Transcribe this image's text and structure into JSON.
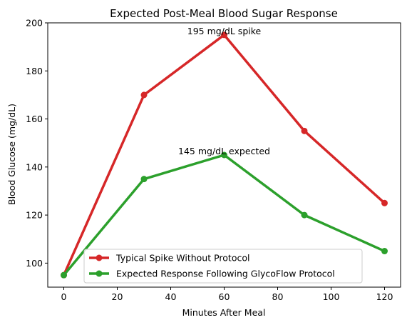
{
  "chart_data": {
    "type": "line",
    "title": "Expected Post-Meal Blood Sugar Response",
    "xlabel": "Minutes After Meal",
    "ylabel": "Blood Glucose (mg/dL)",
    "x": [
      0,
      30,
      60,
      90,
      120
    ],
    "xlim": [
      -6,
      126
    ],
    "ylim": [
      90,
      200
    ],
    "xticks": [
      0,
      20,
      40,
      60,
      80,
      100,
      120
    ],
    "yticks": [
      100,
      120,
      140,
      160,
      180,
      200
    ],
    "grid": false,
    "legend_position": "lower center",
    "series": [
      {
        "name": "Typical Spike Without Protocol",
        "color": "#d62728",
        "values": [
          95,
          170,
          195,
          155,
          125
        ]
      },
      {
        "name": "Expected Response Following GlycoFlow Protocol",
        "color": "#2ca02c",
        "values": [
          95,
          135,
          145,
          120,
          105
        ]
      }
    ],
    "annotations": [
      {
        "text": "195 mg/dL spike",
        "x": 60,
        "y": 195
      },
      {
        "text": "145 mg/dL expected",
        "x": 60,
        "y": 145
      }
    ]
  }
}
